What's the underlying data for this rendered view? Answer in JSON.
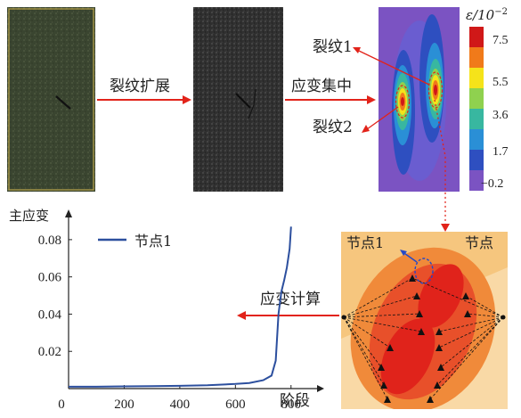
{
  "flow_labels": {
    "crack_growth": "裂纹扩展",
    "strain_concentration": "应变集中",
    "strain_calculation": "应变计算"
  },
  "crack_labels": {
    "crack1": "裂纹1",
    "crack2": "裂纹2"
  },
  "node_labels": {
    "node1": "节点1",
    "node": "节点"
  },
  "colorbar": {
    "title": "ε/10",
    "exponent": "−2",
    "ticks": [
      "7.5",
      "5.5",
      "3.6",
      "1.7",
      "−0.2"
    ],
    "colors": [
      "#d01818",
      "#f07a1a",
      "#f5e31a",
      "#8fd14f",
      "#38b7a0",
      "#2a8fd6",
      "#2e4fc0",
      "#7b53c2"
    ]
  },
  "arrow_color": "#e2231a",
  "chart_data": {
    "type": "line",
    "ylabel": "主应变",
    "xlabel": "阶段",
    "xticks": [
      "0",
      "200",
      "400",
      "600",
      "800"
    ],
    "yticks": [
      "0.02",
      "0.04",
      "0.06",
      "0.08"
    ],
    "xlim": [
      0,
      900
    ],
    "ylim": [
      0,
      0.09
    ],
    "series": [
      {
        "name": "节点1",
        "color": "#2c4f9e",
        "points": [
          [
            0,
            0.001
          ],
          [
            100,
            0.001
          ],
          [
            200,
            0.0012
          ],
          [
            300,
            0.0013
          ],
          [
            400,
            0.0015
          ],
          [
            500,
            0.0018
          ],
          [
            600,
            0.0025
          ],
          [
            650,
            0.003
          ],
          [
            700,
            0.0045
          ],
          [
            730,
            0.007
          ],
          [
            745,
            0.015
          ],
          [
            755,
            0.04
          ],
          [
            765,
            0.052
          ],
          [
            775,
            0.058
          ],
          [
            785,
            0.065
          ],
          [
            795,
            0.075
          ],
          [
            800,
            0.087
          ]
        ]
      }
    ]
  }
}
